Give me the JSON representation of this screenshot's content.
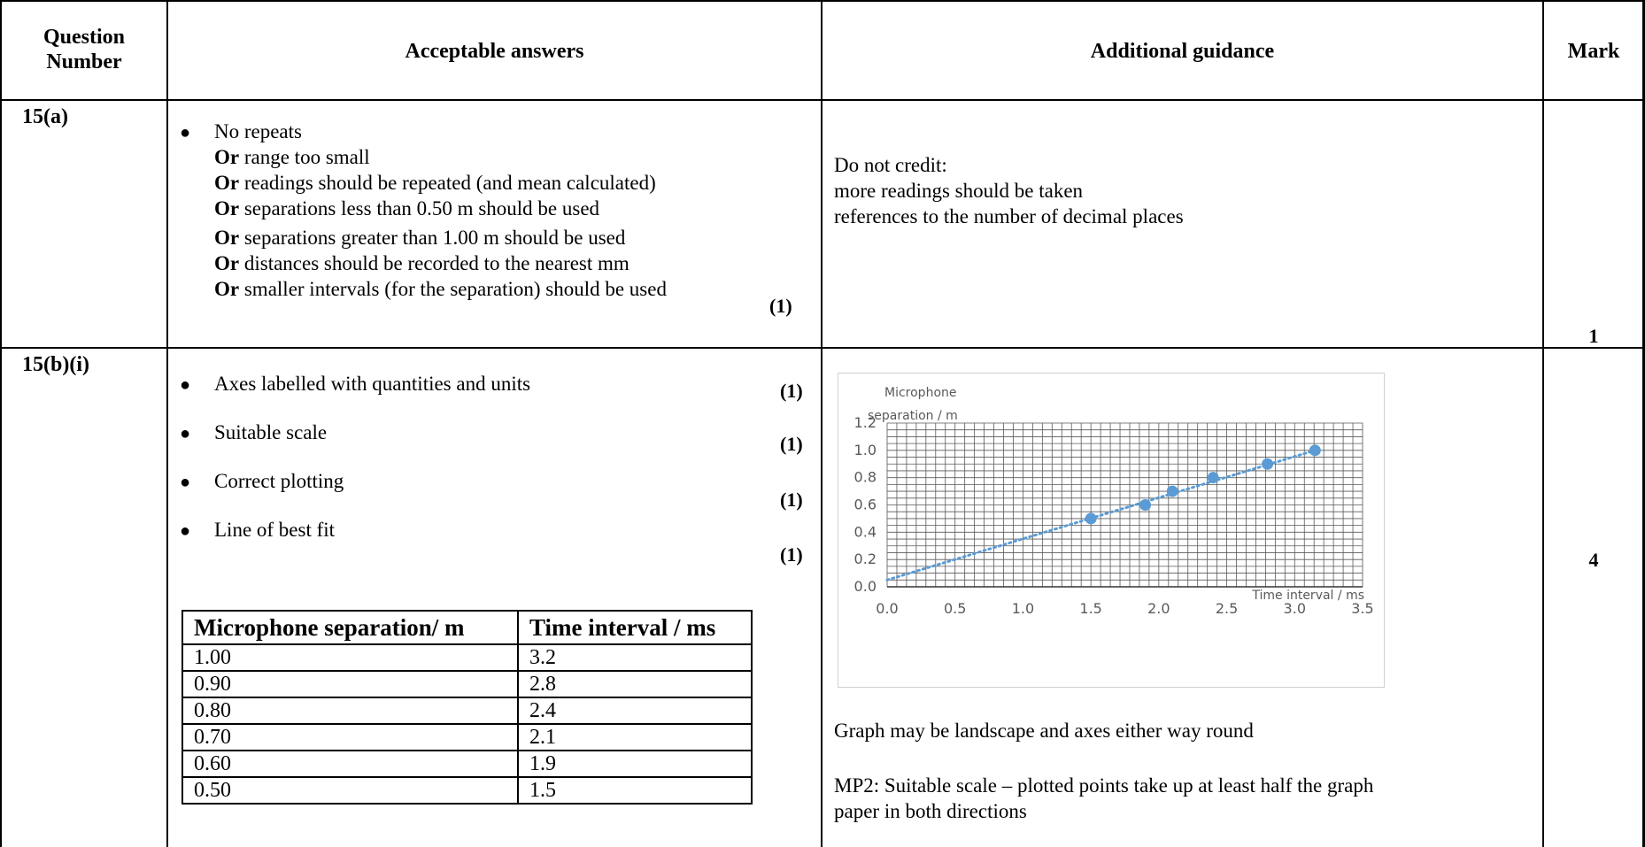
{
  "header": {
    "question_number": [
      "Question",
      "Number"
    ],
    "acceptable_answers": "Acceptable answers",
    "additional_guidance": "Additional guidance",
    "mark": "Mark"
  },
  "rows": {
    "q15a": {
      "number": "15(a)",
      "answers": [
        {
          "prefix": "",
          "text": "No repeats"
        },
        {
          "prefix": "Or",
          "text": " range too small"
        },
        {
          "prefix": "Or",
          "text": " readings should be repeated (and mean calculated)"
        },
        {
          "prefix": "Or",
          "text": " separations less than 0.50 m should be used"
        },
        {
          "prefix": "Or",
          "text": " separations greater than 1.00 m should be used"
        },
        {
          "prefix": "Or",
          "text": " distances should be recorded to the nearest mm"
        },
        {
          "prefix": "Or",
          "text": " smaller intervals (for the separation) should be used"
        }
      ],
      "answer_mark": "(1)",
      "guidance": [
        "Do not credit:",
        "more readings should be taken",
        "references to the number of decimal places"
      ],
      "mark": "1"
    },
    "q15bi": {
      "number": "15(b)(i)",
      "points": [
        {
          "text": "Axes labelled with quantities and units",
          "mark": "(1)"
        },
        {
          "text": "Suitable scale",
          "mark": "(1)"
        },
        {
          "text": "Correct plotting",
          "mark": "(1)"
        },
        {
          "text": "Line of best fit",
          "mark": "(1)"
        }
      ],
      "table": {
        "headers": [
          "Microphone separation/ m",
          "Time interval / ms"
        ],
        "rows": [
          [
            "1.00",
            "3.2"
          ],
          [
            "0.90",
            "2.8"
          ],
          [
            "0.80",
            "2.4"
          ],
          [
            "0.70",
            "2.1"
          ],
          [
            "0.60",
            "1.9"
          ],
          [
            "0.50",
            "1.5"
          ]
        ]
      },
      "guidance": [
        "Graph may be landscape and axes either way round",
        "MP2: Suitable scale – plotted points take up at least half the graph",
        "paper in both directions"
      ],
      "mark": "4"
    }
  },
  "chart_data": {
    "type": "scatter",
    "ylabel": [
      "Microphone",
      "separation / m"
    ],
    "xlabel": "Time interval / ms",
    "xlim": [
      0,
      3.5
    ],
    "ylim": [
      0,
      1.2
    ],
    "xticks": [
      "0.0",
      "0.5",
      "1.0",
      "1.5",
      "2.0",
      "2.5",
      "3.0",
      "3.5"
    ],
    "yticks": [
      "0.0",
      "0.2",
      "0.4",
      "0.6",
      "0.8",
      "1.0",
      "1.2"
    ],
    "points": [
      {
        "x": 1.5,
        "y": 0.5
      },
      {
        "x": 1.9,
        "y": 0.6
      },
      {
        "x": 2.1,
        "y": 0.7
      },
      {
        "x": 2.4,
        "y": 0.8
      },
      {
        "x": 2.8,
        "y": 0.9
      },
      {
        "x": 3.15,
        "y": 1.0
      }
    ],
    "trendline": {
      "x": [
        0,
        3.15
      ],
      "y": [
        0.05,
        1.0
      ],
      "style": "dotted"
    },
    "grid": true,
    "colors": {
      "points": "#5b9bd5",
      "grid": "#595959",
      "text": "#595959"
    }
  }
}
